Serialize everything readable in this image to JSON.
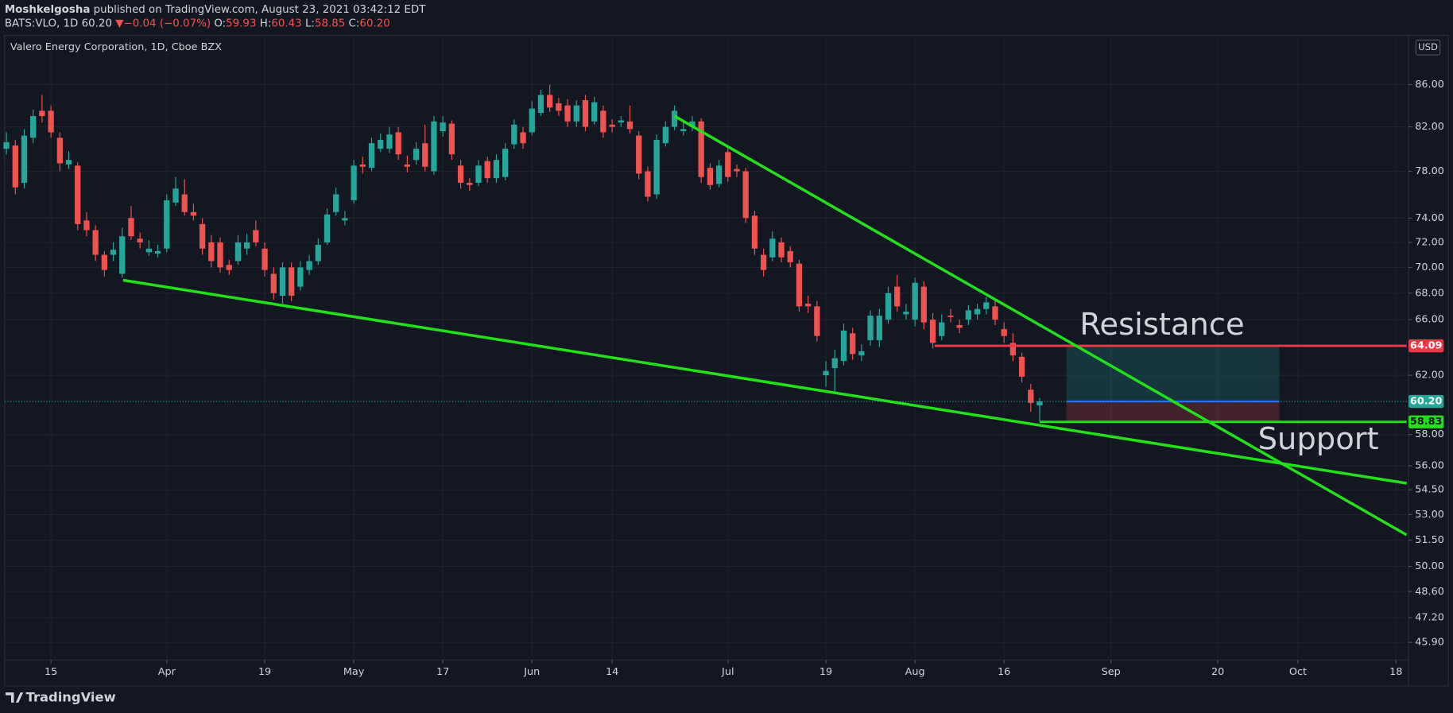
{
  "header": {
    "author": "Moshkelgosha",
    "published": "published on TradingView.com, August 23, 2021 03:42:12 EDT",
    "symbol": "BATS:VLO, 1D",
    "last": "60.20",
    "arrow": "▼",
    "change": "−0.04 (−0.07%)",
    "open_label": "O:",
    "open": "59.93",
    "high_label": "H:",
    "high": "60.43",
    "low_label": "L:",
    "low": "58.85",
    "close_label": "C:",
    "close": "60.20"
  },
  "footer": {
    "brand": "TradingView"
  },
  "chart_data": {
    "type": "candlestick",
    "title": "Valero Energy Corporation, 1D, Cboe BZX",
    "currency": "USD",
    "log_scale": true,
    "grid": true,
    "up_color": "#26a69a",
    "down_color": "#ef5350",
    "xlim": [
      -0.2,
      157.2
    ],
    "xticks": [
      {
        "value": 5,
        "label": "15"
      },
      {
        "value": 18,
        "label": "Apr"
      },
      {
        "value": 29,
        "label": "19"
      },
      {
        "value": 39,
        "label": "May"
      },
      {
        "value": 49,
        "label": "17"
      },
      {
        "value": 59,
        "label": "Jun"
      },
      {
        "value": 68,
        "label": "14"
      },
      {
        "value": 81,
        "label": "Jul"
      },
      {
        "value": 92,
        "label": "19"
      },
      {
        "value": 102,
        "label": "Aug"
      },
      {
        "value": 112,
        "label": "16"
      },
      {
        "value": 124,
        "label": "Sep"
      },
      {
        "value": 136,
        "label": "20"
      },
      {
        "value": 145,
        "label": "Oct"
      },
      {
        "value": 156,
        "label": "18"
      }
    ],
    "ylim": [
      45.0,
      90.7
    ],
    "yticks": [
      {
        "value": 86,
        "label": "86.00"
      },
      {
        "value": 82,
        "label": "82.00"
      },
      {
        "value": 78,
        "label": "78.00"
      },
      {
        "value": 74,
        "label": "74.00"
      },
      {
        "value": 72,
        "label": "72.00"
      },
      {
        "value": 70,
        "label": "70.00"
      },
      {
        "value": 68,
        "label": "68.00"
      },
      {
        "value": 66,
        "label": "66.00"
      },
      {
        "value": 62,
        "label": "62.00"
      },
      {
        "value": 58,
        "label": "58.00"
      },
      {
        "value": 56,
        "label": "56.00"
      },
      {
        "value": 54.5,
        "label": "54.50"
      },
      {
        "value": 53,
        "label": "53.00"
      },
      {
        "value": 51.5,
        "label": "51.50"
      },
      {
        "value": 50,
        "label": "50.00"
      },
      {
        "value": 48.6,
        "label": "48.60"
      },
      {
        "value": 47.2,
        "label": "47.20"
      },
      {
        "value": 45.9,
        "label": "45.90"
      }
    ],
    "candles": {
      "open": [
        80.0,
        80.3,
        77.0,
        81.0,
        83.5,
        83.5,
        81.0,
        78.6,
        78.5,
        73.8,
        73.0,
        71.0,
        71.0,
        69.5,
        74.0,
        72.3,
        71.2,
        71.1,
        71.5,
        75.3,
        76.0,
        74.5,
        73.5,
        72.0,
        72.0,
        70.2,
        70.5,
        71.5,
        73.0,
        71.5,
        69.5,
        67.8,
        70.0,
        68.5,
        69.8,
        70.5,
        72.0,
        74.5,
        73.8,
        75.5,
        78.6,
        78.3,
        80.0,
        80.0,
        81.5,
        78.6,
        79.0,
        80.5,
        78.0,
        81.6,
        82.3,
        78.5,
        77.0,
        77.0,
        78.9,
        77.4,
        77.5,
        80.4,
        81.5,
        81.5,
        83.3,
        85.0,
        84.2,
        84.0,
        82.5,
        84.5,
        82.5,
        83.5,
        82.2,
        82.4,
        82.5,
        81.2,
        78.0,
        76.0,
        80.5,
        82.0,
        81.6,
        82.0,
        82.5,
        78.3,
        76.9,
        79.7,
        78.2,
        78.0,
        74.2,
        71.0,
        70.8,
        72.0,
        71.3,
        70.3,
        67.2,
        67.0,
        62.0,
        62.5,
        63.0,
        65.0,
        63.4,
        64.5,
        64.5,
        66.0,
        68.5,
        66.4,
        66.0,
        68.5,
        66.0,
        64.8,
        66.3,
        65.6,
        66.0,
        66.4,
        66.8,
        67.0,
        65.3,
        64.3,
        63.3,
        61.0,
        59.93
      ],
      "high": [
        81.5,
        80.8,
        81.8,
        83.6,
        85.0,
        84.0,
        81.5,
        79.8,
        78.8,
        74.5,
        73.4,
        71.3,
        72.0,
        73.2,
        75.0,
        72.8,
        72.2,
        71.8,
        76.0,
        77.5,
        77.3,
        75.2,
        74.0,
        72.6,
        72.4,
        70.6,
        72.6,
        72.7,
        73.8,
        72.0,
        70.0,
        70.4,
        70.4,
        70.5,
        71.0,
        72.3,
        74.8,
        76.6,
        74.6,
        79.0,
        79.3,
        81.0,
        81.4,
        82.0,
        82.0,
        79.4,
        80.6,
        82.2,
        83.0,
        83.0,
        82.6,
        79.0,
        77.4,
        79.0,
        79.3,
        79.5,
        80.5,
        82.7,
        82.0,
        84.4,
        85.5,
        86.0,
        84.7,
        84.6,
        84.5,
        85.0,
        84.8,
        84.0,
        82.7,
        83.0,
        84.0,
        81.6,
        78.4,
        81.3,
        82.5,
        84.0,
        82.4,
        83.0,
        82.8,
        78.7,
        79.0,
        80.3,
        78.6,
        78.3,
        74.6,
        71.5,
        72.9,
        72.4,
        71.7,
        70.6,
        67.8,
        67.4,
        63.0,
        63.8,
        65.7,
        65.4,
        64.2,
        66.7,
        66.8,
        68.5,
        69.4,
        67.2,
        69.2,
        68.9,
        66.5,
        66.4,
        66.8,
        66.0,
        67.1,
        67.2,
        67.7,
        67.4,
        65.8,
        65.0,
        63.6,
        61.4,
        60.43
      ],
      "low": [
        79.5,
        76.0,
        76.5,
        80.5,
        82.4,
        81.0,
        78.0,
        78.2,
        73.0,
        72.5,
        70.5,
        69.3,
        70.5,
        69.2,
        72.2,
        71.5,
        70.9,
        70.8,
        71.2,
        75.0,
        74.2,
        73.8,
        71.0,
        70.0,
        69.6,
        69.4,
        70.2,
        71.0,
        71.7,
        69.3,
        67.5,
        67.2,
        67.4,
        68.2,
        69.4,
        70.2,
        71.8,
        74.2,
        73.4,
        75.2,
        77.8,
        78.0,
        79.7,
        79.6,
        79.0,
        77.9,
        78.6,
        78.0,
        77.7,
        81.1,
        79.0,
        76.5,
        76.3,
        76.7,
        77.0,
        77.0,
        77.2,
        80.0,
        80.0,
        81.2,
        83.0,
        83.4,
        83.0,
        82.0,
        82.0,
        81.6,
        82.2,
        81.0,
        81.5,
        82.0,
        81.4,
        77.3,
        75.4,
        75.6,
        80.2,
        81.7,
        81.2,
        81.6,
        77.0,
        76.4,
        76.6,
        77.1,
        77.5,
        73.6,
        71.0,
        69.3,
        70.5,
        70.4,
        70.0,
        66.6,
        66.5,
        64.4,
        61.2,
        60.8,
        62.7,
        63.1,
        63.0,
        64.1,
        64.0,
        65.7,
        66.6,
        66.0,
        65.5,
        65.3,
        63.9,
        64.5,
        65.8,
        65.0,
        65.6,
        66.0,
        66.4,
        65.6,
        64.3,
        63.0,
        61.5,
        59.5,
        58.85
      ],
      "close": [
        80.6,
        76.6,
        81.2,
        83.0,
        83.0,
        81.5,
        78.7,
        79.0,
        73.5,
        73.0,
        71.0,
        69.8,
        71.4,
        72.5,
        72.5,
        72.0,
        71.5,
        71.3,
        75.5,
        76.5,
        74.5,
        74.2,
        71.5,
        70.5,
        70.0,
        69.8,
        72.0,
        72.0,
        72.0,
        69.8,
        68.0,
        70.0,
        67.8,
        70.0,
        70.5,
        71.8,
        74.3,
        76.0,
        74.0,
        78.5,
        78.4,
        80.5,
        80.8,
        81.3,
        79.5,
        78.4,
        80.0,
        78.4,
        82.5,
        82.4,
        79.5,
        77.0,
        76.8,
        78.5,
        77.4,
        79.0,
        80.0,
        82.2,
        80.5,
        83.7,
        85.0,
        83.8,
        83.5,
        82.5,
        84.0,
        82.0,
        84.3,
        81.5,
        82.0,
        82.6,
        81.8,
        77.8,
        75.8,
        80.8,
        82.0,
        83.5,
        81.8,
        82.5,
        77.5,
        76.8,
        78.5,
        77.5,
        78.0,
        74.0,
        71.5,
        69.8,
        72.3,
        70.8,
        70.4,
        67.0,
        67.0,
        64.8,
        62.3,
        63.2,
        65.2,
        63.5,
        63.7,
        66.3,
        66.3,
        68.0,
        67.0,
        66.6,
        68.8,
        65.8,
        64.3,
        65.8,
        66.2,
        65.4,
        66.7,
        66.8,
        67.3,
        66.0,
        64.8,
        63.4,
        61.9,
        60.1,
        60.2
      ]
    },
    "last_price": {
      "value": 60.2,
      "label": "60.20",
      "color": "#26a69a"
    },
    "price_labels": [
      {
        "value": 64.09,
        "label": "64.09",
        "color": "#f23645"
      },
      {
        "value": 58.83,
        "label": "58.83",
        "color": "#22e01a"
      }
    ],
    "trendlines": [
      {
        "from": [
          13.1,
          69.0
        ],
        "to": [
          157.2,
          54.9
        ],
        "color": "#22e01a"
      },
      {
        "from": [
          75,
          83.0
        ],
        "to": [
          157.2,
          51.8
        ],
        "color": "#22e01a"
      }
    ],
    "levels": [
      {
        "from": 104.2,
        "color": "#f23645"
      },
      {
        "from": 116,
        "color": "#22e01a"
      }
    ],
    "position": {
      "start": 119,
      "end": 142.9,
      "entry_color": "#2962ff",
      "profit_color": "#26a69a",
      "loss_color": "#ef5350"
    },
    "annotations": [
      {
        "text": "Resistance",
        "x": 120.5,
        "y": 65.5,
        "color": "#f51b1b"
      },
      {
        "text": "Support",
        "x": 140.5,
        "y": 57.6,
        "color": "#22e01a"
      }
    ]
  }
}
